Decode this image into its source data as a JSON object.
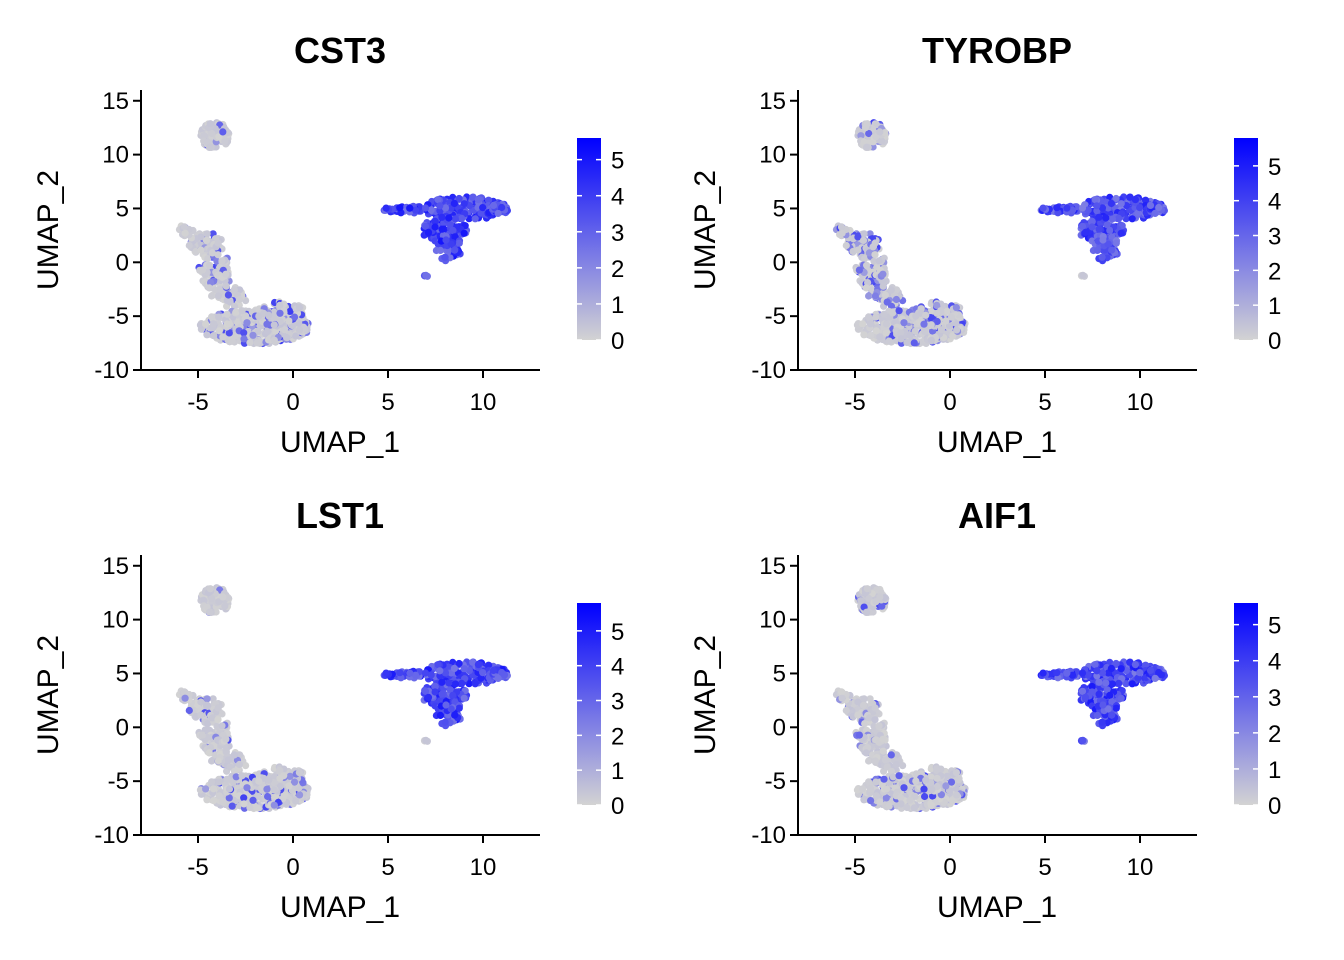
{
  "colors": {
    "low": "#d3d3d3",
    "high": "#0000ff",
    "axis": "#000000"
  },
  "chart_data": [
    {
      "type": "scatter",
      "title": "CST3",
      "xlabel": "UMAP_1",
      "ylabel": "UMAP_2",
      "xlim": [
        -8,
        13
      ],
      "ylim": [
        -10,
        16
      ],
      "xticks": [
        "-5",
        "0",
        "5",
        "10"
      ],
      "yticks": [
        "15",
        "10",
        "5",
        "0",
        "-5",
        "-10"
      ],
      "color_scale": {
        "min": 0,
        "max": 5.6,
        "ticks": [
          "5",
          "4",
          "3",
          "2",
          "1",
          "0"
        ]
      },
      "expression_by_cluster": [
        {
          "cluster": "island-top-left",
          "center": [
            -4.1,
            11.8
          ],
          "level": 0.5
        },
        {
          "cluster": "arm-upper-left",
          "center": [
            -4.3,
            0.5
          ],
          "level": 0.6
        },
        {
          "cluster": "lower-left-mass",
          "center": [
            -2.5,
            -6.0
          ],
          "level": 0.8
        },
        {
          "cluster": "myeloid-right",
          "center": [
            8.5,
            3.8
          ],
          "level": 3.8
        },
        {
          "cluster": "small-right",
          "center": [
            7.0,
            -1.2
          ],
          "level": 3.0
        }
      ]
    },
    {
      "type": "scatter",
      "title": "TYROBP",
      "xlabel": "UMAP_1",
      "ylabel": "UMAP_2",
      "xlim": [
        -8,
        13
      ],
      "ylim": [
        -10,
        16
      ],
      "xticks": [
        "-5",
        "0",
        "5",
        "10"
      ],
      "yticks": [
        "15",
        "10",
        "5",
        "0",
        "-5",
        "-10"
      ],
      "color_scale": {
        "min": 0,
        "max": 5.8,
        "ticks": [
          "5",
          "4",
          "3",
          "2",
          "1",
          "0"
        ]
      },
      "expression_by_cluster": [
        {
          "cluster": "island-top-left",
          "center": [
            -4.1,
            11.8
          ],
          "level": 0.6
        },
        {
          "cluster": "arm-upper-left",
          "center": [
            -4.3,
            0.5
          ],
          "level": 1.4
        },
        {
          "cluster": "lower-left-mass",
          "center": [
            -2.5,
            -6.0
          ],
          "level": 0.6
        },
        {
          "cluster": "myeloid-right",
          "center": [
            8.5,
            3.8
          ],
          "level": 3.6
        },
        {
          "cluster": "small-right",
          "center": [
            7.0,
            -1.2
          ],
          "level": 0.2
        }
      ]
    },
    {
      "type": "scatter",
      "title": "LST1",
      "xlabel": "UMAP_1",
      "ylabel": "UMAP_2",
      "xlim": [
        -8,
        13
      ],
      "ylim": [
        -10,
        16
      ],
      "xticks": [
        "-5",
        "0",
        "5",
        "10"
      ],
      "yticks": [
        "15",
        "10",
        "5",
        "0",
        "-5",
        "-10"
      ],
      "color_scale": {
        "min": 0,
        "max": 5.8,
        "ticks": [
          "5",
          "4",
          "3",
          "2",
          "1",
          "0"
        ]
      },
      "expression_by_cluster": [
        {
          "cluster": "island-top-left",
          "center": [
            -4.1,
            11.8
          ],
          "level": 0.2
        },
        {
          "cluster": "arm-upper-left",
          "center": [
            -4.3,
            0.5
          ],
          "level": 0.4
        },
        {
          "cluster": "lower-left-mass",
          "center": [
            -2.5,
            -6.0
          ],
          "level": 0.6
        },
        {
          "cluster": "myeloid-right",
          "center": [
            8.5,
            3.8
          ],
          "level": 3.8
        },
        {
          "cluster": "small-right",
          "center": [
            7.0,
            -1.2
          ],
          "level": 0.4
        }
      ]
    },
    {
      "type": "scatter",
      "title": "AIF1",
      "xlabel": "UMAP_1",
      "ylabel": "UMAP_2",
      "xlim": [
        -8,
        13
      ],
      "ylim": [
        -10,
        16
      ],
      "xticks": [
        "-5",
        "0",
        "5",
        "10"
      ],
      "yticks": [
        "15",
        "10",
        "5",
        "0",
        "-5",
        "-10"
      ],
      "color_scale": {
        "min": 0,
        "max": 5.6,
        "ticks": [
          "5",
          "4",
          "3",
          "2",
          "1",
          "0"
        ]
      },
      "expression_by_cluster": [
        {
          "cluster": "island-top-left",
          "center": [
            -4.1,
            11.8
          ],
          "level": 0.4
        },
        {
          "cluster": "arm-upper-left",
          "center": [
            -4.3,
            0.5
          ],
          "level": 0.3
        },
        {
          "cluster": "lower-left-mass",
          "center": [
            -2.5,
            -6.0
          ],
          "level": 0.6
        },
        {
          "cluster": "myeloid-right",
          "center": [
            8.5,
            3.8
          ],
          "level": 3.6
        },
        {
          "cluster": "small-right",
          "center": [
            7.0,
            -1.2
          ],
          "level": 3.0
        }
      ]
    }
  ]
}
